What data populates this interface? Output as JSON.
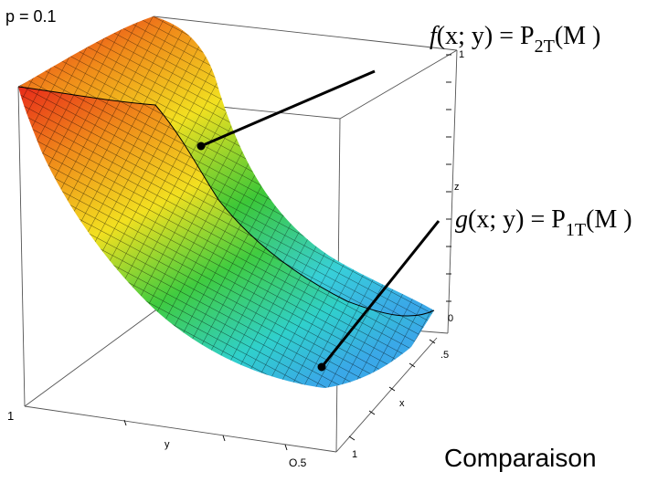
{
  "header": {
    "param_label": "p = 0.1"
  },
  "axes": {
    "z_label": "z",
    "x_label": "x",
    "y_label": "y",
    "z_tick_top": "1",
    "z_tick_zero": "0",
    "x_tick_mid": ".5",
    "x_tick_end": "1",
    "y_tick_left": "1",
    "y_tick_mid": "O.5"
  },
  "formula_f": {
    "func": "f",
    "args": "(x; y)",
    "eq": " = ",
    "P": "P",
    "sub": "2T",
    "arg": "(M )"
  },
  "formula_g": {
    "func": "g",
    "args": "(x; y)",
    "eq": " = ",
    "P": "P",
    "sub": "1T",
    "arg": "(M )"
  },
  "caption": "Comparaison",
  "colors": {
    "red": "#e8201a",
    "orange": "#f08a1a",
    "yellow": "#f2e020",
    "green": "#3cc838",
    "cyan": "#38d0d8",
    "blue": "#3aa8e8",
    "mesh": "#000000"
  }
}
